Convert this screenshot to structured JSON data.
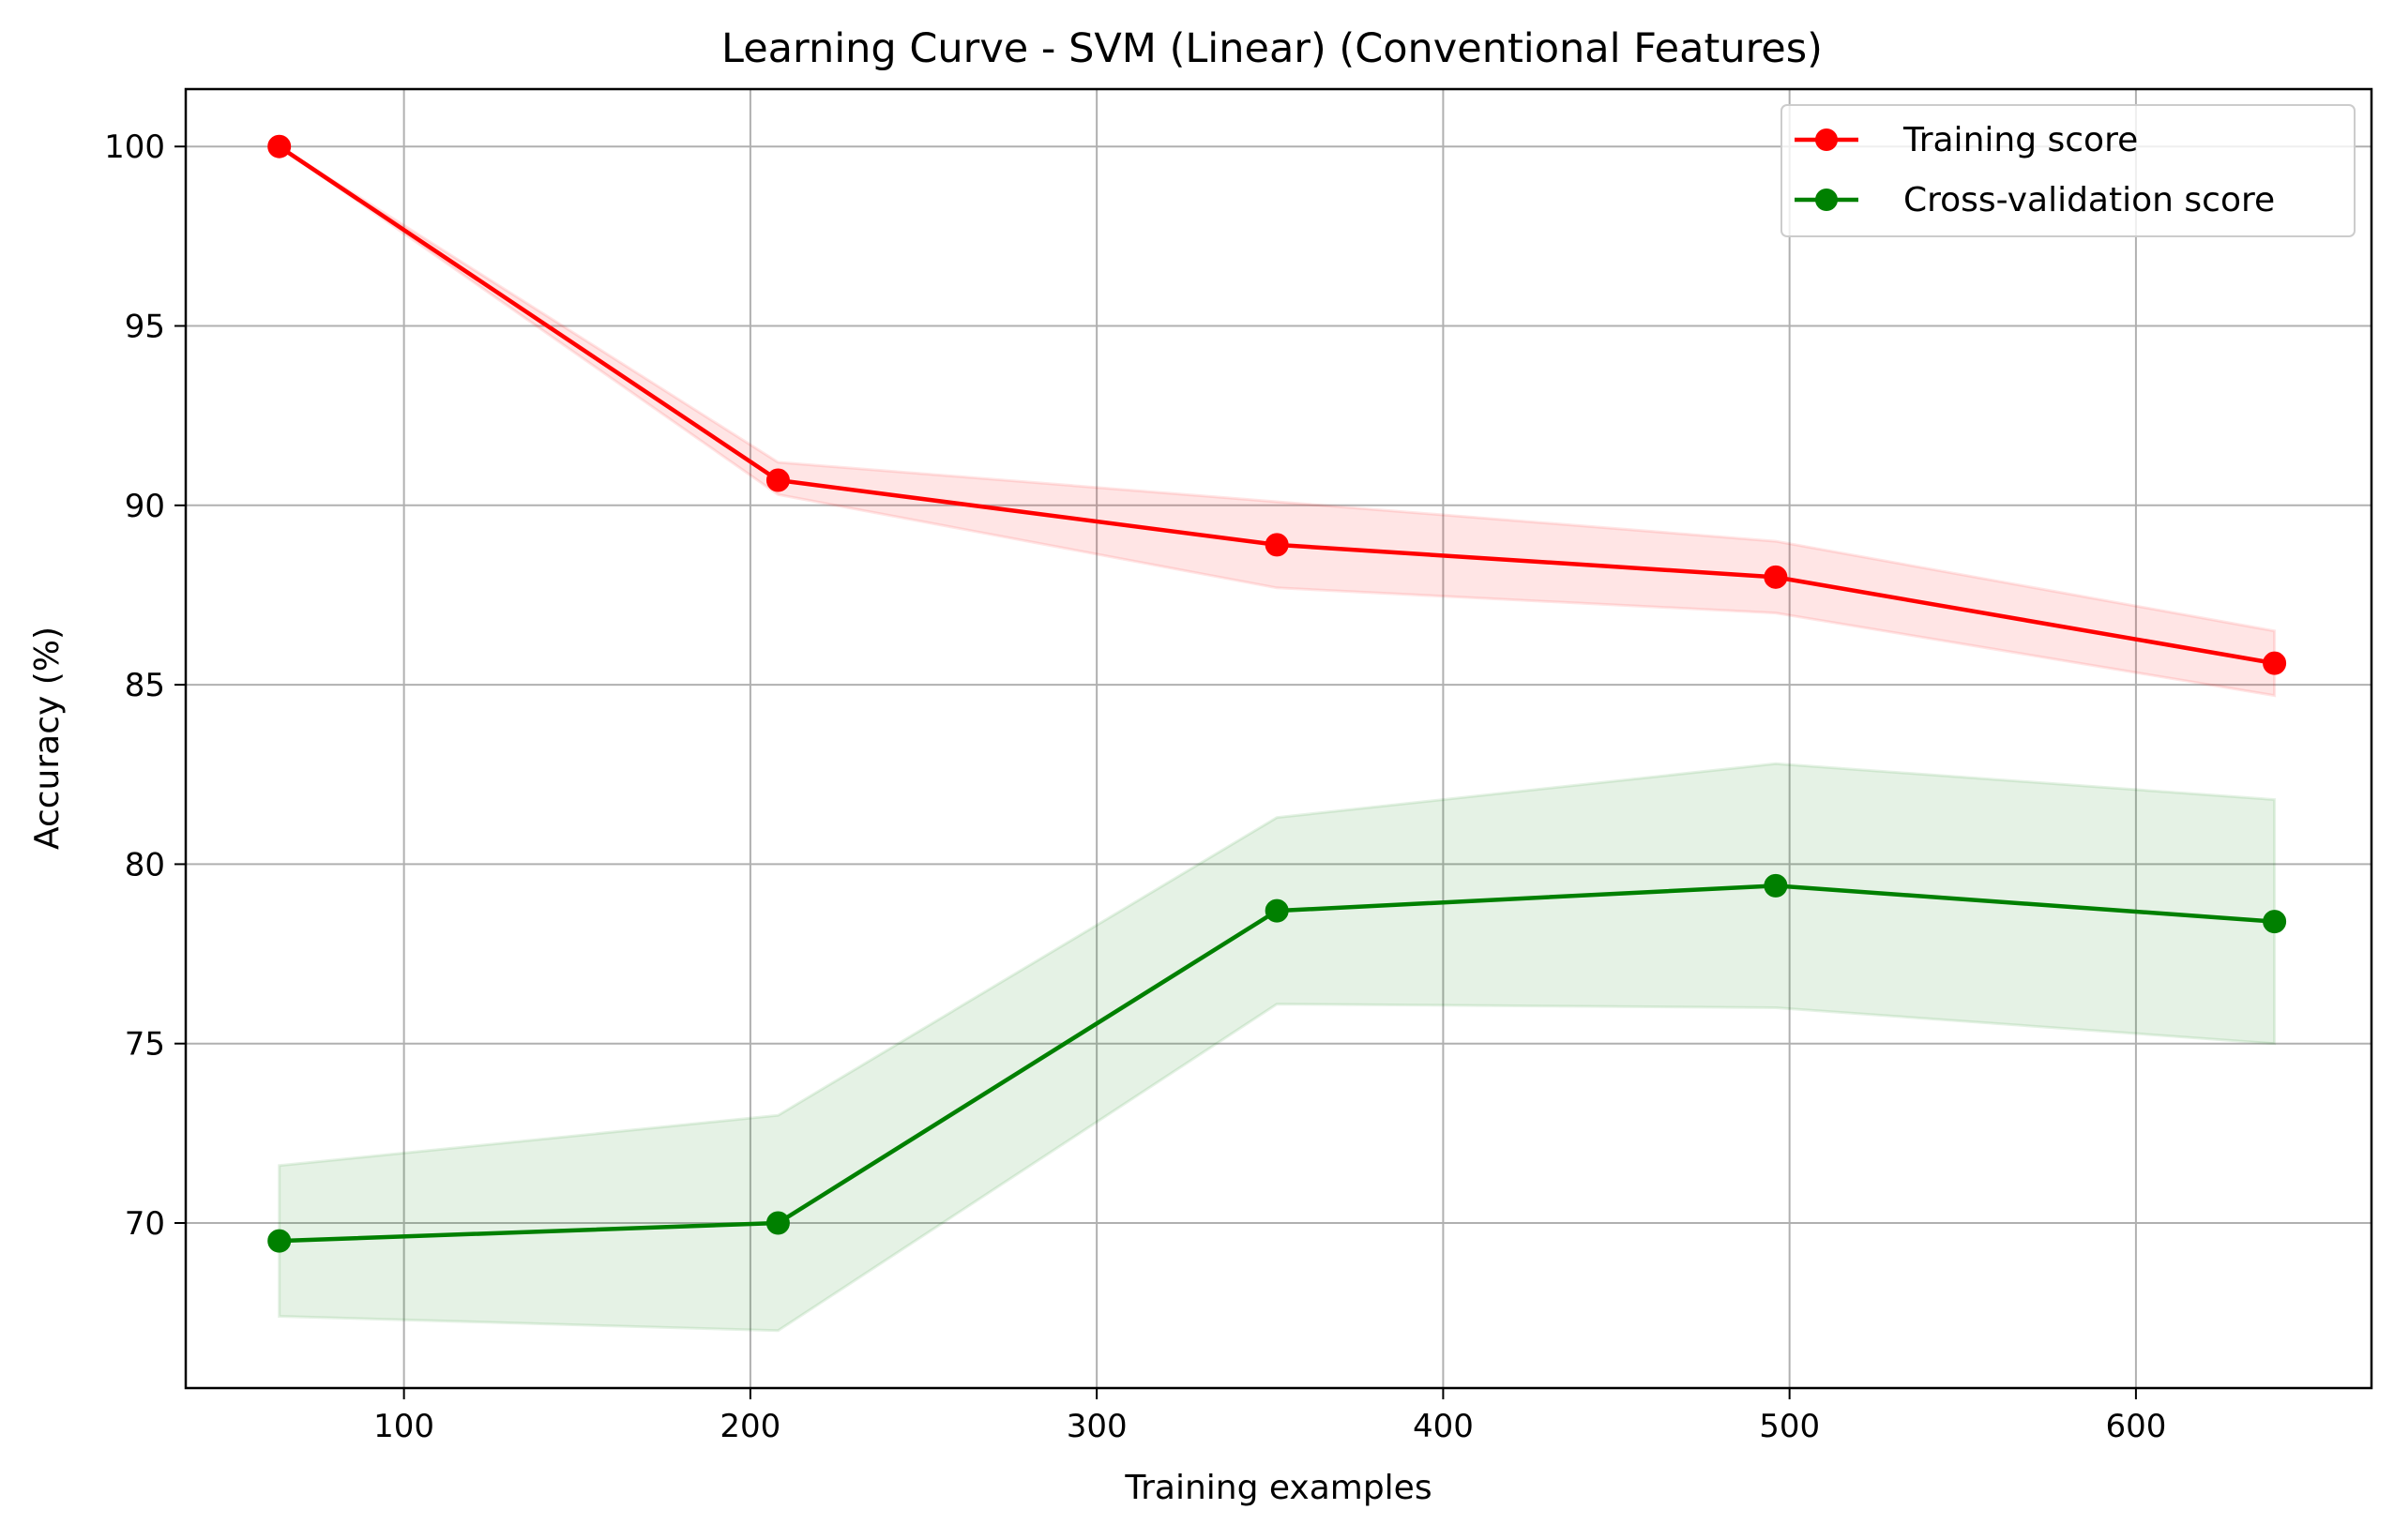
{
  "chart_data": {
    "type": "line",
    "title": "Learning Curve - SVM (Linear) (Conventional Features)",
    "xlabel": "Training examples",
    "ylabel": "Accuracy (%)",
    "xlim": [
      37,
      668
    ],
    "ylim": [
      65.4,
      101.6
    ],
    "xticks": [
      100,
      200,
      300,
      400,
      500,
      600
    ],
    "yticks": [
      70,
      75,
      80,
      85,
      90,
      95,
      100
    ],
    "grid": true,
    "legend_position": "top-right",
    "x": [
      64,
      208,
      352,
      496,
      640
    ],
    "series": [
      {
        "name": "Training score",
        "color": "#ff0000",
        "band_color": "#ff0000",
        "values": [
          100.0,
          90.7,
          88.9,
          88.0,
          85.6
        ],
        "lower": [
          100.0,
          90.3,
          87.7,
          87.0,
          84.7
        ],
        "upper": [
          100.0,
          91.2,
          90.1,
          89.0,
          86.5
        ]
      },
      {
        "name": "Cross-validation score",
        "color": "#008000",
        "band_color": "#008000",
        "values": [
          69.5,
          70.0,
          78.7,
          79.4,
          78.4
        ],
        "lower": [
          67.4,
          67.0,
          76.1,
          76.0,
          75.0
        ],
        "upper": [
          71.6,
          73.0,
          81.3,
          82.8,
          81.8
        ]
      }
    ]
  }
}
